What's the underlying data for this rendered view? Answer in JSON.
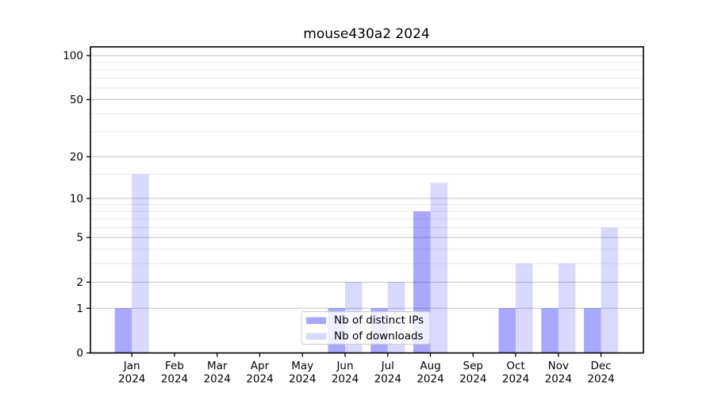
{
  "chart_data": {
    "type": "bar",
    "title": "mouse430a2 2024",
    "categories": [
      "Jan",
      "Feb",
      "Mar",
      "Apr",
      "May",
      "Jun",
      "Jul",
      "Aug",
      "Sep",
      "Oct",
      "Nov",
      "Dec"
    ],
    "year": "2024",
    "series": [
      {
        "name": "Nb of distinct IPs",
        "values": [
          1,
          0,
          0,
          0,
          0,
          1,
          1,
          8,
          0,
          1,
          1,
          1
        ],
        "fill": "rgba(0,0,255,0.34)",
        "color_hex": "#a8a8ff"
      },
      {
        "name": "Nb of downloads",
        "values": [
          15,
          0,
          0,
          0,
          0,
          2,
          2,
          13,
          0,
          3,
          3,
          6
        ],
        "fill": "rgba(0,0,255,0.15)",
        "color_hex": "#d9d9ff"
      }
    ],
    "xlabel": "",
    "ylabel": "",
    "y_scale": "log1p",
    "ylim": [
      0,
      100
    ],
    "y_major_ticks": [
      0,
      1,
      2,
      5,
      10,
      20,
      50,
      100
    ],
    "y_minor_ticks": [
      3,
      4,
      6,
      7,
      8,
      9,
      15,
      30,
      40,
      60,
      70,
      80,
      90
    ],
    "grid": true,
    "legend_position": "lower center"
  },
  "colors": {
    "background": "#ffffff",
    "axis": "#000000",
    "grid_major": "#c2c2c2",
    "grid_minor": "#eaeaea",
    "legend_border": "#cccccc",
    "legend_bg": "rgba(255,255,255,0.8)",
    "text": "#000000"
  }
}
